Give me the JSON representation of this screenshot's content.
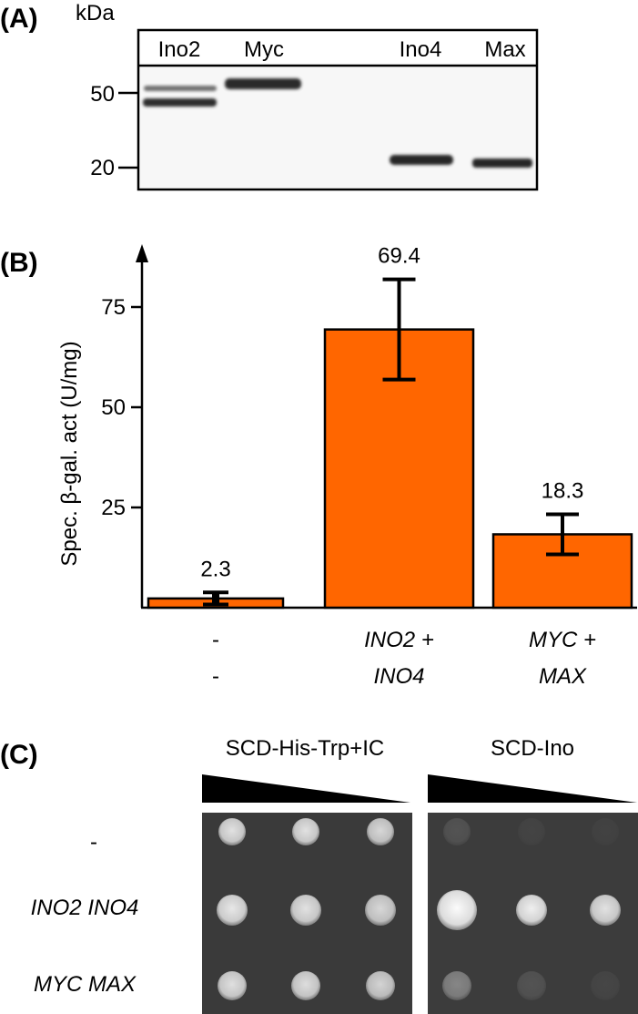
{
  "panel_a": {
    "label": "(A)",
    "unit_label": "kDa",
    "lanes": [
      "Ino2",
      "Myc",
      "Ino4",
      "Max"
    ],
    "markers": [
      "50",
      "20"
    ]
  },
  "panel_b": {
    "label": "(B)",
    "chart_data": {
      "type": "bar",
      "title": "",
      "xlabel": "",
      "ylabel": "Spec. β-gal. act (U/mg)",
      "ylim": [
        0,
        92
      ],
      "yticks": [
        25,
        50,
        75
      ],
      "ytick_labels": [
        "25",
        "50",
        "75"
      ],
      "categories": [
        "- / -",
        "INO2 + INO4",
        "MYC + MAX"
      ],
      "category_lines": [
        [
          "-",
          "-"
        ],
        [
          "INO2 +",
          "INO4"
        ],
        [
          "MYC +",
          "MAX"
        ]
      ],
      "category_italic": [
        false,
        true,
        true
      ],
      "values": [
        2.3,
        69.4,
        18.3
      ],
      "value_labels": [
        "2.3",
        "69.4",
        "18.3"
      ],
      "errors": [
        1.5,
        12.5,
        5
      ],
      "bar_color": "#ff6600"
    }
  },
  "panel_c": {
    "label": "(C)",
    "media": [
      "SCD-His-Trp+IC",
      "SCD-Ino"
    ],
    "rows": [
      "-",
      "INO2 INO4",
      "MYC MAX"
    ],
    "spot_brightness": [
      [
        [
          0.85,
          0.85,
          0.8
        ],
        [
          0.12,
          0.04,
          0.03
        ]
      ],
      [
        [
          0.88,
          0.85,
          0.8
        ],
        [
          0.98,
          0.92,
          0.85
        ]
      ],
      [
        [
          0.84,
          0.83,
          0.78
        ],
        [
          0.38,
          0.12,
          0.05
        ]
      ]
    ]
  }
}
